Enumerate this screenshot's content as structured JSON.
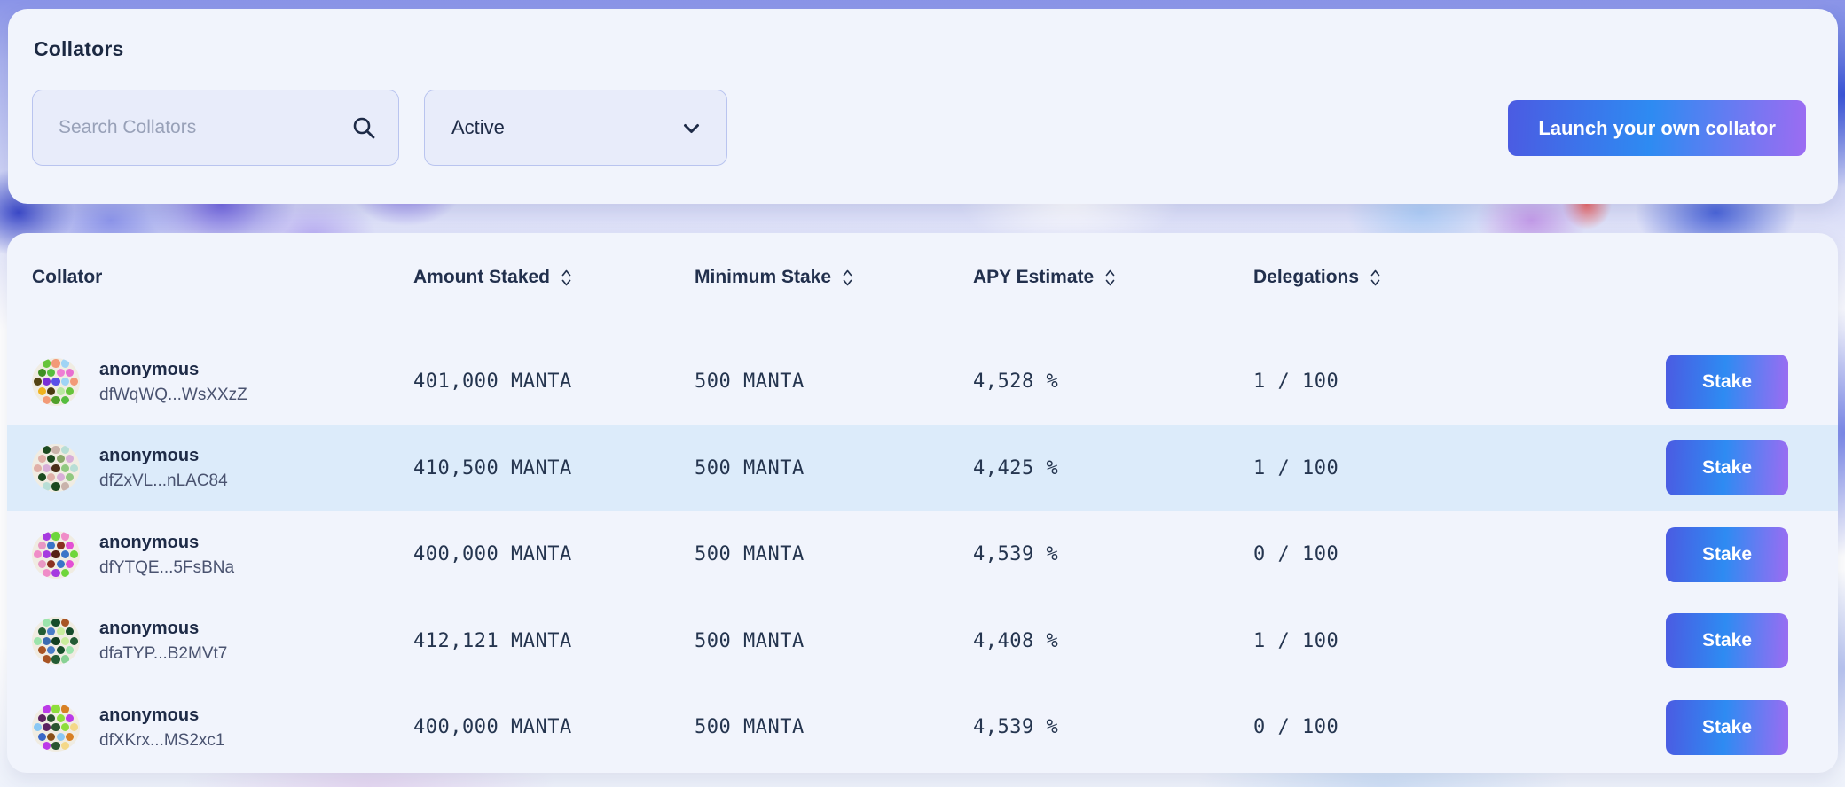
{
  "colors": {
    "accent_gradient_start": "#4b5be2",
    "accent_gradient_mid": "#2e8bf2",
    "accent_gradient_end": "#9c6cf2",
    "card_background": "#f1f4fc",
    "row_highlight": "#dcebfa",
    "text_primary": "#1e2b47"
  },
  "header": {
    "title": "Collators",
    "search": {
      "placeholder": "Search Collators",
      "value": "",
      "icon": "search-icon"
    },
    "status_filter": {
      "value": "Active",
      "icon": "chevron-down-icon"
    },
    "launch_button_label": "Launch your own collator"
  },
  "table": {
    "columns": [
      {
        "label": "Collator",
        "sortable": false
      },
      {
        "label": "Amount Staked",
        "sortable": true
      },
      {
        "label": "Minimum Stake",
        "sortable": true
      },
      {
        "label": "APY Estimate",
        "sortable": true
      },
      {
        "label": "Delegations",
        "sortable": true
      }
    ],
    "stake_button_label": "Stake",
    "rows": [
      {
        "name": "anonymous",
        "address": "dfWqWQ...WsXXzZ",
        "amount_staked": "401,000 MANTA",
        "minimum_stake": "500 MANTA",
        "apy_estimate": "4,528 %",
        "delegations": "1 / 100",
        "highlighted": false,
        "avatar_colors": [
          "#67c43a",
          "#f29a77",
          "#9fd4f5",
          "#3f8f23",
          "#55bd3f",
          "#ef7fd4",
          "#e86fd0",
          "#544413",
          "#7a2fd6",
          "#5a50e8",
          "#9fd4f5",
          "#f29a77",
          "#efb31f",
          "#4a3a10",
          "#b8e8a0",
          "#67c43a",
          "#f29a77",
          "#4f9f2a",
          "#55bd3f"
        ]
      },
      {
        "name": "anonymous",
        "address": "dfZxVL...nLAC84",
        "amount_staked": "410,500 MANTA",
        "minimum_stake": "500 MANTA",
        "apy_estimate": "4,425 %",
        "delegations": "1 / 100",
        "highlighted": true,
        "avatar_colors": [
          "#1c4a20",
          "#c9b3ab",
          "#b8ded6",
          "#e0b0a8",
          "#1c4a20",
          "#8aa86a",
          "#d8aed8",
          "#e0b0a8",
          "#d8aed8",
          "#4a2e18",
          "#90c880",
          "#b8ded6",
          "#1c4a20",
          "#e0b0a8",
          "#d8aed8",
          "#90c880",
          "#b8ded6",
          "#1c4a20",
          "#c9b3ab"
        ]
      },
      {
        "name": "anonymous",
        "address": "dfYTQE...5FsBNa",
        "amount_staked": "400,000 MANTA",
        "minimum_stake": "500 MANTA",
        "apy_estimate": "4,539 %",
        "delegations": "0 / 100",
        "highlighted": false,
        "avatar_colors": [
          "#a63ae0",
          "#6ed63a",
          "#f08cc8",
          "#e898c4",
          "#3a74c8",
          "#8a3020",
          "#e44fd4",
          "#f08cc8",
          "#a63ae0",
          "#552015",
          "#3a74c8",
          "#6ed63a",
          "#e898c4",
          "#8a3020",
          "#3a74c8",
          "#e44fd4",
          "#f08cc8",
          "#a63ae0",
          "#6ed63a"
        ]
      },
      {
        "name": "anonymous",
        "address": "dfaTYP...B2MVt7",
        "amount_staked": "412,121 MANTA",
        "minimum_stake": "500 MANTA",
        "apy_estimate": "4,408 %",
        "delegations": "1 / 100",
        "highlighted": false,
        "avatar_colors": [
          "#9ce4ac",
          "#164c2a",
          "#a85424",
          "#235c34",
          "#4a7cc8",
          "#c8ec9c",
          "#164c2a",
          "#9ce4ac",
          "#3a6ab0",
          "#123f22",
          "#c8ec9c",
          "#235c34",
          "#a85424",
          "#4a7cc8",
          "#164c2a",
          "#9ce4ac",
          "#a85424",
          "#235c34",
          "#88d194"
        ]
      },
      {
        "name": "anonymous",
        "address": "dfXKrx...MS2xc1",
        "amount_staked": "400,000 MANTA",
        "minimum_stake": "500 MANTA",
        "apy_estimate": "4,539 %",
        "delegations": "0 / 100",
        "highlighted": false,
        "avatar_colors": [
          "#bb3ae8",
          "#8ede3c",
          "#d88024",
          "#5c2260",
          "#2a5430",
          "#8ede3c",
          "#bb3ae8",
          "#8ac8f4",
          "#5c2260",
          "#2a5430",
          "#8ede3c",
          "#f4d888",
          "#3a68c8",
          "#8a5018",
          "#8ac8f4",
          "#d88024",
          "#bb3ae8",
          "#2a5430",
          "#f4d888"
        ]
      }
    ]
  }
}
